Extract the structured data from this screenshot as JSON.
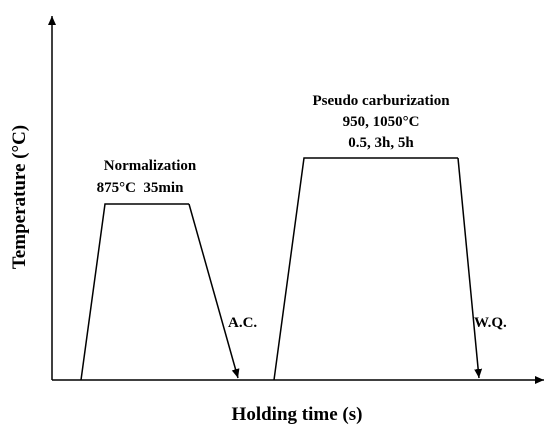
{
  "diagram": {
    "x_axis_title": "Holding time (s)",
    "y_axis_title": "Temperature (°C)",
    "stages": [
      {
        "name": "Normalization",
        "condition_lines": [
          "875°C  35min"
        ],
        "cooling_label": "A.C."
      },
      {
        "name": "Pseudo carburization",
        "condition_lines": [
          "950, 1050°C",
          "0.5, 3h, 5h"
        ],
        "cooling_label": "W.Q."
      }
    ]
  }
}
